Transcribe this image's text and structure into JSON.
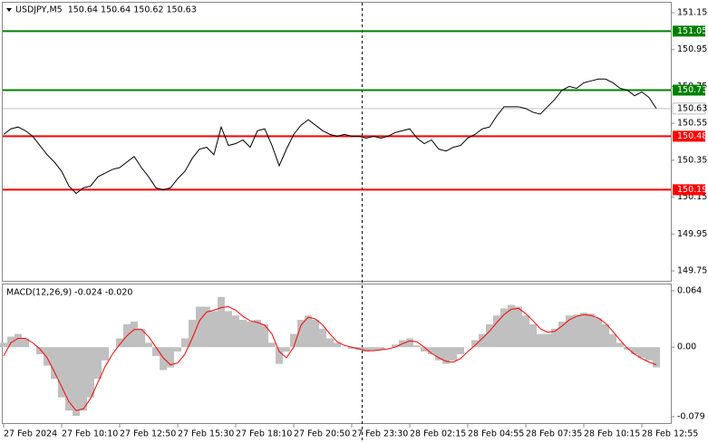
{
  "chart_data": [
    {
      "type": "line",
      "title": "USDJPY,M5  150.64 150.64 150.62 150.63",
      "color": "#000000",
      "categories": [
        "27 Feb 2024",
        null,
        null,
        null,
        null,
        null,
        null,
        null,
        "27 Feb 10:10",
        null,
        null,
        null,
        null,
        null,
        null,
        null,
        "27 Feb 12:50",
        null,
        null,
        null,
        null,
        null,
        null,
        null,
        "27 Feb 15:30",
        null,
        null,
        null,
        null,
        null,
        null,
        null,
        "27 Feb 18:10",
        null,
        null,
        null,
        null,
        null,
        null,
        null,
        "27 Feb 20:50",
        null,
        null,
        null,
        null,
        null,
        null,
        null,
        "27 Feb 23:30",
        null,
        null,
        null,
        null,
        null,
        null,
        null,
        "28 Feb 02:15",
        null,
        null,
        null,
        null,
        null,
        null,
        null,
        "28 Feb 04:55",
        null,
        null,
        null,
        null,
        null,
        null,
        null,
        "28 Feb 07:35",
        null,
        null,
        null,
        null,
        null,
        null,
        null,
        "28 Feb 10:15",
        null,
        null,
        null,
        null,
        null,
        null,
        null,
        "28 Feb 12:55",
        null,
        null
      ],
      "values": [
        150.49,
        150.52,
        150.53,
        150.51,
        150.48,
        150.43,
        150.38,
        150.34,
        150.29,
        150.21,
        150.17,
        150.2,
        150.21,
        150.26,
        150.28,
        150.3,
        150.31,
        150.34,
        150.37,
        150.31,
        150.26,
        150.2,
        150.19,
        150.2,
        150.25,
        150.29,
        150.36,
        150.41,
        150.42,
        150.38,
        150.53,
        150.43,
        150.44,
        150.46,
        150.42,
        150.51,
        150.52,
        150.43,
        150.32,
        150.41,
        150.49,
        150.54,
        150.57,
        150.54,
        150.51,
        150.49,
        150.48,
        150.49,
        150.48,
        150.48,
        150.47,
        150.48,
        150.47,
        150.48,
        150.5,
        150.51,
        150.52,
        150.47,
        150.44,
        150.46,
        150.41,
        150.4,
        150.42,
        150.43,
        150.47,
        150.49,
        150.52,
        150.53,
        150.59,
        150.64,
        150.64,
        150.64,
        150.63,
        150.61,
        150.6,
        150.64,
        150.68,
        150.73,
        150.75,
        150.74,
        150.77,
        150.78,
        150.79,
        150.79,
        150.77,
        150.74,
        150.73,
        150.7,
        150.72,
        150.69,
        150.63
      ],
      "ylim": [
        149.75,
        151.15
      ],
      "yticks": [
        151.15,
        150.95,
        150.75,
        150.55,
        150.35,
        150.15,
        149.95,
        149.75
      ],
      "levels": [
        {
          "value": 151.05,
          "color": "#008000"
        },
        {
          "value": 150.73,
          "color": "#008000"
        },
        {
          "value": 150.48,
          "color": "#ff0000"
        },
        {
          "value": 150.19,
          "color": "#ff0000"
        }
      ],
      "last_price": 150.63,
      "last_price_color": "#c0c0c0"
    },
    {
      "type": "macd",
      "title": "MACD(12,26,9) -0.024 -0.020",
      "series": [
        {
          "type": "bar",
          "color": "#c0c0c0",
          "values": [
            0.005,
            0.012,
            0.015,
            0.01,
            0,
            -0.008,
            -0.021,
            -0.036,
            -0.057,
            -0.072,
            -0.078,
            -0.072,
            -0.057,
            -0.036,
            -0.015,
            0,
            0.01,
            0.026,
            0.029,
            0.021,
            0.005,
            -0.01,
            -0.026,
            -0.023,
            -0.005,
            0.01,
            0.031,
            0.046,
            0.046,
            0.041,
            0.057,
            0.041,
            0.036,
            0.031,
            0.029,
            0.031,
            0.026,
            0.005,
            -0.019,
            -0.005,
            0.015,
            0.031,
            0.036,
            0.031,
            0.021,
            0.01,
            0.005,
            0,
            -0.002,
            -0.003,
            -0.005,
            -0.004,
            -0.003,
            0,
            0.003,
            0.008,
            0.01,
            0.002,
            -0.005,
            -0.008,
            -0.015,
            -0.019,
            -0.015,
            -0.008,
            0,
            0.008,
            0.015,
            0.026,
            0.036,
            0.044,
            0.048,
            0.046,
            0.036,
            0.026,
            0.015,
            0.015,
            0.021,
            0.029,
            0.036,
            0.037,
            0.039,
            0.038,
            0.033,
            0.026,
            0.015,
            0.005,
            -0.003,
            -0.008,
            -0.012,
            -0.015,
            -0.023
          ]
        },
        {
          "type": "line",
          "color": "#ff0000",
          "values": [
            -0.01,
            0.005,
            0.01,
            0.01,
            0.005,
            -0.002,
            -0.012,
            -0.028,
            -0.045,
            -0.062,
            -0.072,
            -0.07,
            -0.058,
            -0.04,
            -0.022,
            -0.008,
            0.003,
            0.013,
            0.02,
            0.02,
            0.012,
            0,
            -0.012,
            -0.02,
            -0.018,
            -0.008,
            0.01,
            0.03,
            0.04,
            0.042,
            0.045,
            0.046,
            0.042,
            0.035,
            0.03,
            0.028,
            0.025,
            0.015,
            -0.005,
            -0.012,
            0,
            0.025,
            0.034,
            0.032,
            0.025,
            0.015,
            0.006,
            0.002,
            0,
            -0.002,
            -0.004,
            -0.004,
            -0.003,
            -0.002,
            0,
            0.004,
            0.007,
            0.006,
            0,
            -0.007,
            -0.012,
            -0.016,
            -0.017,
            -0.013,
            -0.005,
            0.002,
            0.01,
            0.018,
            0.028,
            0.037,
            0.043,
            0.044,
            0.038,
            0.03,
            0.021,
            0.017,
            0.018,
            0.024,
            0.031,
            0.035,
            0.037,
            0.036,
            0.033,
            0.027,
            0.018,
            0.008,
            -0.001,
            -0.008,
            -0.013,
            -0.017,
            -0.02
          ]
        }
      ],
      "ylim": [
        -0.079,
        0.064
      ],
      "yticks": [
        0.064,
        {
          "value": 0,
          "label": "0.00"
        },
        -0.079
      ]
    }
  ]
}
